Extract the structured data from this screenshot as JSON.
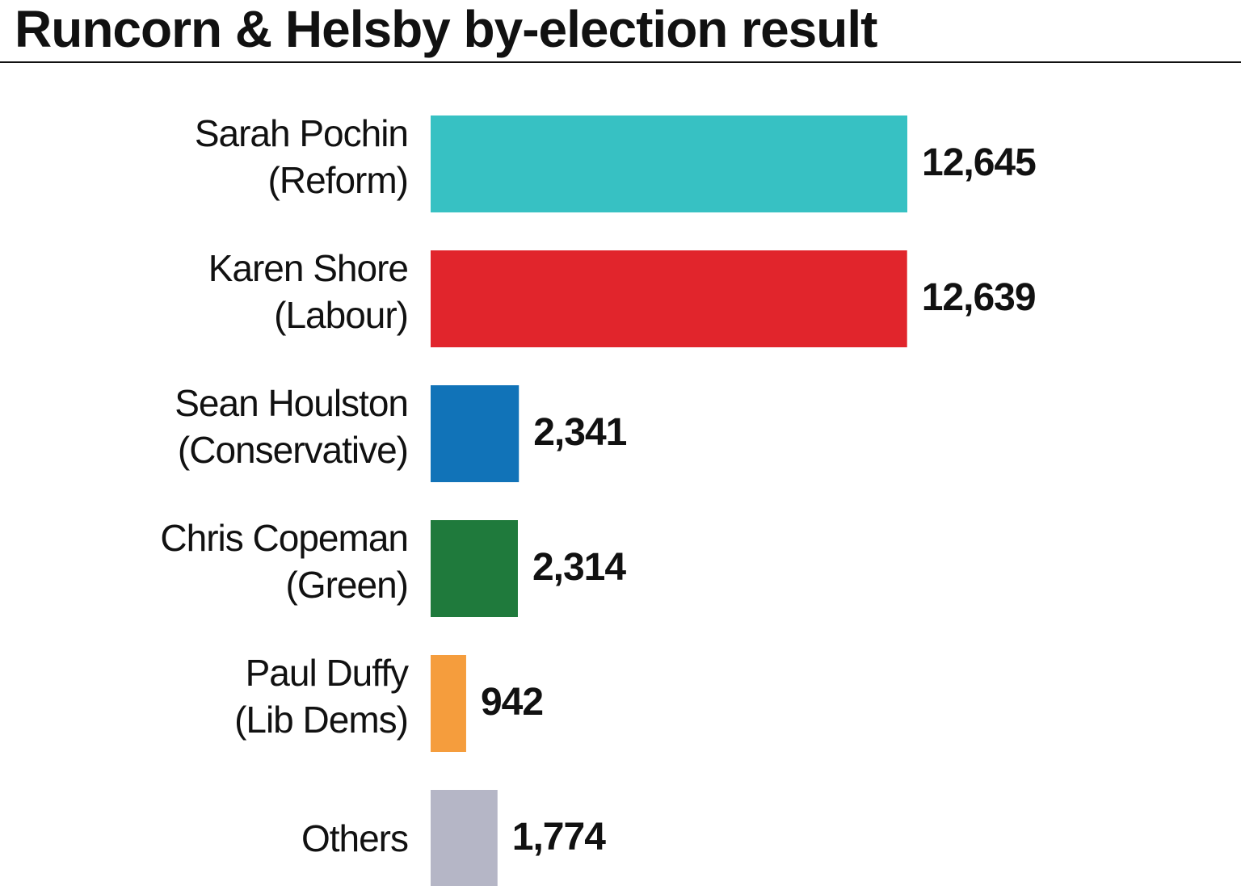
{
  "chart_data": {
    "type": "bar",
    "orientation": "horizontal",
    "title": "Runcorn & Helsby by-election result",
    "categories": [
      [
        "Sarah Pochin",
        "(Reform)"
      ],
      [
        "Karen Shore",
        "(Labour)"
      ],
      [
        "Sean Houlston",
        "(Conservative)"
      ],
      [
        "Chris Copeman",
        "(Green)"
      ],
      [
        "Paul Duffy",
        "(Lib Dems)"
      ],
      [
        "Others"
      ]
    ],
    "values": [
      12645,
      12639,
      2341,
      2314,
      942,
      1774
    ],
    "value_labels": [
      "12,645",
      "12,639",
      "2,341",
      "2,314",
      "942",
      "1,774"
    ],
    "colors": [
      "#37c1c3",
      "#e1252c",
      "#1173b8",
      "#1f7a3c",
      "#f59d3d",
      "#b5b6c6"
    ],
    "xlim": [
      0,
      12645
    ],
    "grid": false,
    "legend": "none"
  }
}
